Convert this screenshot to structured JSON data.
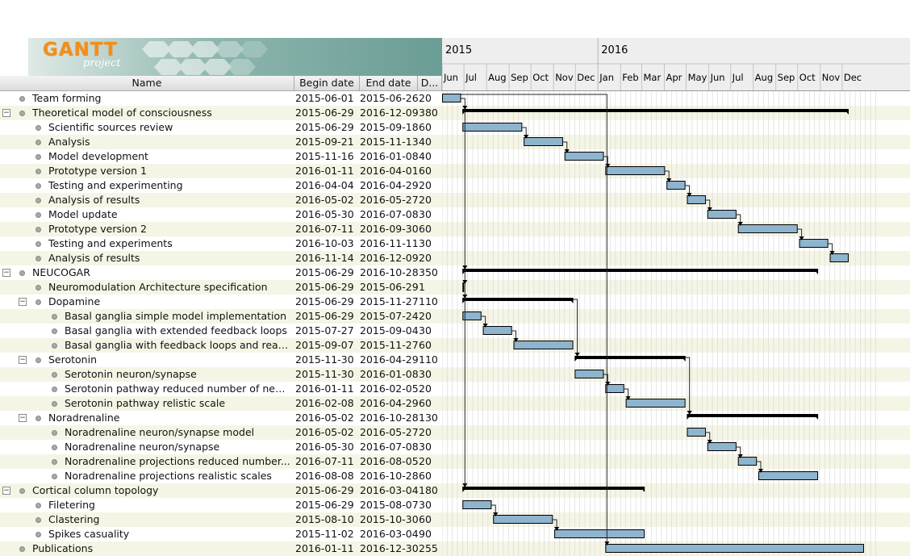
{
  "app": {
    "logo_text": "GANTT",
    "logo_sub": "project"
  },
  "table_headers": {
    "name": "Name",
    "begin": "Begin date",
    "end": "End date",
    "duration": "D..."
  },
  "timeline": {
    "years": [
      "2015",
      "2016"
    ],
    "months": [
      "Jun",
      "Jul",
      "Aug",
      "Sep",
      "Oct",
      "Nov",
      "Dec",
      "Jan",
      "Feb",
      "Mar",
      "Apr",
      "May",
      "Jun",
      "Jul",
      "Aug",
      "Sep",
      "Oct",
      "Nov",
      "Dec"
    ]
  },
  "colors": {
    "task_bar": "#8fb4cd",
    "summary_bar": "#000000",
    "alt_row": "#f5f5e6"
  },
  "tasks": [
    {
      "name": "Team forming",
      "begin": "2015-06-01",
      "end": "2015-06-26",
      "duration": "20",
      "level": 0,
      "summary": false
    },
    {
      "name": "Theoretical model of consciousness",
      "begin": "2015-06-29",
      "end": "2016-12-09",
      "duration": "380",
      "level": 0,
      "summary": true
    },
    {
      "name": "Scientific sources review",
      "begin": "2015-06-29",
      "end": "2015-09-18",
      "duration": "60",
      "level": 1,
      "summary": false
    },
    {
      "name": "Analysis",
      "begin": "2015-09-21",
      "end": "2015-11-13",
      "duration": "40",
      "level": 1,
      "summary": false
    },
    {
      "name": "Model development",
      "begin": "2015-11-16",
      "end": "2016-01-08",
      "duration": "40",
      "level": 1,
      "summary": false
    },
    {
      "name": "Prototype version 1",
      "begin": "2016-01-11",
      "end": "2016-04-01",
      "duration": "60",
      "level": 1,
      "summary": false
    },
    {
      "name": "Testing and experimenting",
      "begin": "2016-04-04",
      "end": "2016-04-29",
      "duration": "20",
      "level": 1,
      "summary": false
    },
    {
      "name": "Analysis of results",
      "begin": "2016-05-02",
      "end": "2016-05-27",
      "duration": "20",
      "level": 1,
      "summary": false
    },
    {
      "name": "Model update",
      "begin": "2016-05-30",
      "end": "2016-07-08",
      "duration": "30",
      "level": 1,
      "summary": false
    },
    {
      "name": "Prototype version 2",
      "begin": "2016-07-11",
      "end": "2016-09-30",
      "duration": "60",
      "level": 1,
      "summary": false
    },
    {
      "name": "Testing and experiments",
      "begin": "2016-10-03",
      "end": "2016-11-11",
      "duration": "30",
      "level": 1,
      "summary": false
    },
    {
      "name": "Analysis of results",
      "begin": "2016-11-14",
      "end": "2016-12-09",
      "duration": "20",
      "level": 1,
      "summary": false
    },
    {
      "name": "NEUCOGAR",
      "begin": "2015-06-29",
      "end": "2016-10-28",
      "duration": "350",
      "level": 0,
      "summary": true
    },
    {
      "name": "Neuromodulation Architecture specification",
      "begin": "2015-06-29",
      "end": "2015-06-29",
      "duration": "1",
      "level": 1,
      "summary": false,
      "milestone": true
    },
    {
      "name": "Dopamine",
      "begin": "2015-06-29",
      "end": "2015-11-27",
      "duration": "110",
      "level": 1,
      "summary": true
    },
    {
      "name": "Basal ganglia simple model implementation",
      "begin": "2015-06-29",
      "end": "2015-07-24",
      "duration": "20",
      "level": 2,
      "summary": false
    },
    {
      "name": "Basal ganglia with extended feedback loops",
      "begin": "2015-07-27",
      "end": "2015-09-04",
      "duration": "30",
      "level": 2,
      "summary": false
    },
    {
      "name": "Basal ganglia with feedback loops and reali...",
      "begin": "2015-09-07",
      "end": "2015-11-27",
      "duration": "60",
      "level": 2,
      "summary": false
    },
    {
      "name": "Serotonin",
      "begin": "2015-11-30",
      "end": "2016-04-29",
      "duration": "110",
      "level": 1,
      "summary": true
    },
    {
      "name": "Serotonin neuron/synapse",
      "begin": "2015-11-30",
      "end": "2016-01-08",
      "duration": "30",
      "level": 2,
      "summary": false
    },
    {
      "name": "Serotonin pathway reduced number of neu...",
      "begin": "2016-01-11",
      "end": "2016-02-05",
      "duration": "20",
      "level": 2,
      "summary": false
    },
    {
      "name": "Serotonin pathway relistic scale",
      "begin": "2016-02-08",
      "end": "2016-04-29",
      "duration": "60",
      "level": 2,
      "summary": false
    },
    {
      "name": "Noradrenaline",
      "begin": "2016-05-02",
      "end": "2016-10-28",
      "duration": "130",
      "level": 1,
      "summary": true
    },
    {
      "name": "Noradrenaline neuron/synapse model",
      "begin": "2016-05-02",
      "end": "2016-05-27",
      "duration": "20",
      "level": 2,
      "summary": false
    },
    {
      "name": "Noradrenaline neuron/synapse",
      "begin": "2016-05-30",
      "end": "2016-07-08",
      "duration": "30",
      "level": 2,
      "summary": false
    },
    {
      "name": "Noradrenaline projections reduced number...",
      "begin": "2016-07-11",
      "end": "2016-08-05",
      "duration": "20",
      "level": 2,
      "summary": false
    },
    {
      "name": "Noradrenaline projections realistic scales",
      "begin": "2016-08-08",
      "end": "2016-10-28",
      "duration": "60",
      "level": 2,
      "summary": false
    },
    {
      "name": "Cortical column topology",
      "begin": "2015-06-29",
      "end": "2016-03-04",
      "duration": "180",
      "level": 0,
      "summary": true
    },
    {
      "name": "Filetering",
      "begin": "2015-06-29",
      "end": "2015-08-07",
      "duration": "30",
      "level": 1,
      "summary": false
    },
    {
      "name": "Clastering",
      "begin": "2015-08-10",
      "end": "2015-10-30",
      "duration": "60",
      "level": 1,
      "summary": false
    },
    {
      "name": "Spikes casuality",
      "begin": "2015-11-02",
      "end": "2016-03-04",
      "duration": "90",
      "level": 1,
      "summary": false
    },
    {
      "name": "Publications",
      "begin": "2016-01-11",
      "end": "2016-12-30",
      "duration": "255",
      "level": 0,
      "summary": false
    }
  ]
}
